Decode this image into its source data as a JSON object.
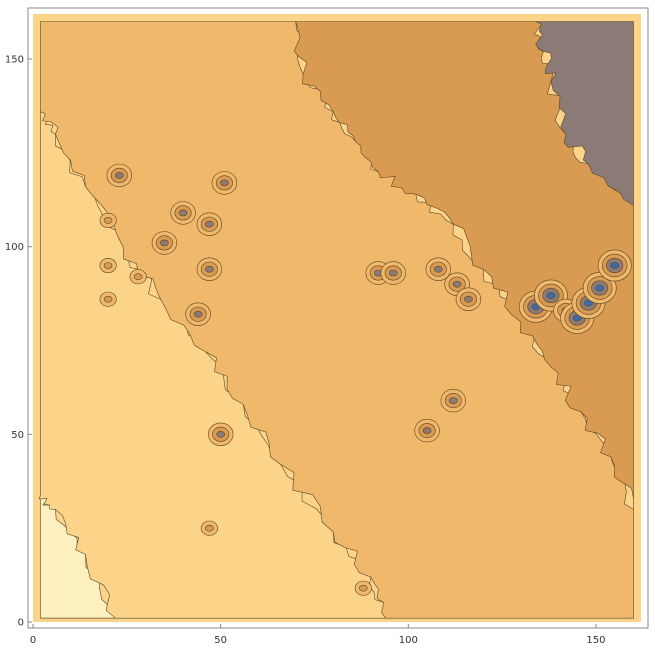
{
  "chart_data": {
    "type": "heatmap",
    "subtype": "contour",
    "title": "",
    "xlabel": "",
    "ylabel": "",
    "xlim": [
      0,
      162
    ],
    "ylim": [
      0,
      162
    ],
    "x_ticks": [
      0,
      50,
      100,
      150
    ],
    "y_ticks": [
      0,
      50,
      100,
      150
    ],
    "x_tick_labels": [
      "0",
      "50",
      "100",
      "150"
    ],
    "y_tick_labels": [
      "0",
      "50",
      "100",
      "150"
    ],
    "grid": false,
    "legend": "none",
    "colors": {
      "level_0": "#fdf0c0",
      "level_1": "#fbd48a",
      "level_2": "#f0b86a",
      "level_3": "#d99a52",
      "level_4": "#8c7a76",
      "level_5": "#3d6aa8",
      "contour_line": "#5a4628",
      "frame": "#888888"
    },
    "regions": [
      {
        "level": 0,
        "polygon": [
          [
            2,
            1
          ],
          [
            2,
            34
          ],
          [
            6,
            30
          ],
          [
            14,
            18
          ],
          [
            22,
            1
          ]
        ]
      },
      {
        "level": 1,
        "polygon": [
          [
            2,
            1
          ],
          [
            22,
            1
          ],
          [
            14,
            18
          ],
          [
            6,
            30
          ],
          [
            2,
            34
          ],
          [
            2,
            136
          ],
          [
            6,
            130
          ],
          [
            14,
            116
          ],
          [
            24,
            100
          ],
          [
            34,
            86
          ],
          [
            46,
            72
          ],
          [
            56,
            58
          ],
          [
            66,
            42
          ],
          [
            80,
            24
          ],
          [
            90,
            12
          ],
          [
            94,
            1
          ]
        ]
      },
      {
        "level": 2,
        "polygon": [
          [
            94,
            1
          ],
          [
            90,
            12
          ],
          [
            80,
            24
          ],
          [
            66,
            42
          ],
          [
            56,
            58
          ],
          [
            46,
            72
          ],
          [
            34,
            86
          ],
          [
            24,
            100
          ],
          [
            14,
            116
          ],
          [
            6,
            130
          ],
          [
            2,
            136
          ],
          [
            2,
            160
          ],
          [
            70,
            160
          ],
          [
            72,
            146
          ],
          [
            80,
            136
          ],
          [
            86,
            128
          ],
          [
            92,
            120
          ],
          [
            102,
            114
          ],
          [
            112,
            106
          ],
          [
            120,
            94
          ],
          [
            130,
            80
          ],
          [
            138,
            68
          ],
          [
            146,
            56
          ],
          [
            154,
            44
          ],
          [
            160,
            30
          ],
          [
            160,
            1
          ]
        ]
      },
      {
        "level": 3,
        "polygon": [
          [
            70,
            160
          ],
          [
            72,
            146
          ],
          [
            80,
            136
          ],
          [
            86,
            128
          ],
          [
            92,
            120
          ],
          [
            102,
            114
          ],
          [
            112,
            106
          ],
          [
            120,
            94
          ],
          [
            130,
            80
          ],
          [
            138,
            68
          ],
          [
            146,
            56
          ],
          [
            154,
            44
          ],
          [
            160,
            30
          ],
          [
            160,
            111
          ],
          [
            148,
            122
          ],
          [
            142,
            130
          ],
          [
            138,
            144
          ],
          [
            136,
            152
          ],
          [
            134,
            160
          ]
        ]
      },
      {
        "level": 4,
        "polygon": [
          [
            134,
            160
          ],
          [
            136,
            152
          ],
          [
            138,
            144
          ],
          [
            142,
            130
          ],
          [
            148,
            122
          ],
          [
            160,
            111
          ],
          [
            160,
            160
          ]
        ]
      }
    ],
    "spots": [
      {
        "x": 23,
        "y": 119,
        "peak": 4
      },
      {
        "x": 20,
        "y": 107,
        "peak": 3
      },
      {
        "x": 20,
        "y": 95,
        "peak": 3
      },
      {
        "x": 20,
        "y": 86,
        "peak": 3
      },
      {
        "x": 28,
        "y": 92,
        "peak": 3
      },
      {
        "x": 35,
        "y": 101,
        "peak": 4
      },
      {
        "x": 40,
        "y": 109,
        "peak": 4
      },
      {
        "x": 47,
        "y": 106,
        "peak": 4
      },
      {
        "x": 51,
        "y": 117,
        "peak": 4
      },
      {
        "x": 47,
        "y": 94,
        "peak": 4
      },
      {
        "x": 44,
        "y": 82,
        "peak": 4
      },
      {
        "x": 50,
        "y": 50,
        "peak": 4
      },
      {
        "x": 47,
        "y": 25,
        "peak": 3
      },
      {
        "x": 88,
        "y": 9,
        "peak": 3
      },
      {
        "x": 92,
        "y": 93,
        "peak": 4
      },
      {
        "x": 96,
        "y": 93,
        "peak": 4
      },
      {
        "x": 108,
        "y": 94,
        "peak": 4
      },
      {
        "x": 113,
        "y": 90,
        "peak": 4
      },
      {
        "x": 116,
        "y": 86,
        "peak": 4
      },
      {
        "x": 105,
        "y": 51,
        "peak": 4
      },
      {
        "x": 112,
        "y": 59,
        "peak": 4
      },
      {
        "x": 134,
        "y": 84,
        "peak": 5
      },
      {
        "x": 138,
        "y": 87,
        "peak": 5
      },
      {
        "x": 142,
        "y": 83,
        "peak": 4
      },
      {
        "x": 145,
        "y": 81,
        "peak": 5
      },
      {
        "x": 148,
        "y": 85,
        "peak": 5
      },
      {
        "x": 151,
        "y": 89,
        "peak": 5
      },
      {
        "x": 155,
        "y": 95,
        "peak": 5
      }
    ]
  }
}
